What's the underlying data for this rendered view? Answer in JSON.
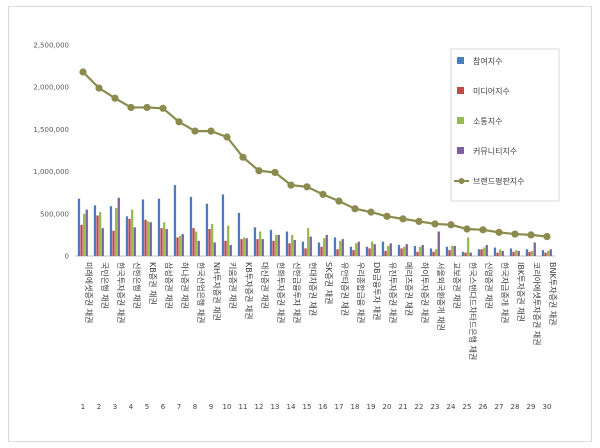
{
  "chart_data": {
    "type": "bar",
    "y_ticks": [
      "0",
      "500,000",
      "1,000,000",
      "1,500,000",
      "2,000,000",
      "2,500,000"
    ],
    "ylim": [
      0,
      2500000
    ],
    "grid": false,
    "legend_position": "right",
    "categories": [
      "미래에셋증권 채권",
      "국민은행 채권",
      "한국투자증권 채권",
      "신한은행 채권",
      "KB증권 채권",
      "삼성증권 채권",
      "하나증권 채권",
      "한국산업은행 채권",
      "NH투자증권 채권",
      "키움증권 채권",
      "KB투자증권 채권",
      "대신증권 채권",
      "한화투자증권 채권",
      "신한금융투자 채권",
      "현대차증권 채권",
      "SK증권 채권",
      "유안타증권 채권",
      "우리종합금융 채권",
      "DB금융투자 채권",
      "유진투자증권 채권",
      "메리츠증권 채권",
      "하이투자증권 채권",
      "서울외국환중개 채권",
      "교보증권 채권",
      "한국스탠다드차타드은행 채권",
      "신영증권 채권",
      "한국자금중개 채권",
      "IBK투자증권 채권",
      "코리아에셋투자증권 채권",
      "BNK투자증권 채권"
    ],
    "index_labels": [
      "1",
      "2",
      "3",
      "4",
      "5",
      "6",
      "7",
      "8",
      "9",
      "10",
      "11",
      "12",
      "13",
      "14",
      "15",
      "16",
      "17",
      "18",
      "19",
      "20",
      "21",
      "22",
      "23",
      "24",
      "25",
      "26",
      "27",
      "28",
      "29",
      "30"
    ],
    "series": [
      {
        "name": "참여지수",
        "kind": "bar",
        "color": "#4a7ebb",
        "values": [
          680000,
          600000,
          590000,
          470000,
          670000,
          680000,
          840000,
          700000,
          620000,
          730000,
          510000,
          340000,
          310000,
          290000,
          170000,
          160000,
          220000,
          110000,
          110000,
          170000,
          130000,
          120000,
          90000,
          110000,
          50000,
          80000,
          100000,
          90000,
          80000,
          70000
        ]
      },
      {
        "name": "미디어지수",
        "kind": "bar",
        "color": "#be4b48",
        "values": [
          370000,
          480000,
          300000,
          440000,
          430000,
          330000,
          220000,
          330000,
          320000,
          180000,
          200000,
          200000,
          180000,
          150000,
          90000,
          110000,
          80000,
          70000,
          90000,
          60000,
          90000,
          50000,
          50000,
          70000,
          40000,
          80000,
          40000,
          50000,
          50000,
          40000
        ]
      },
      {
        "name": "소통지수",
        "kind": "bar",
        "color": "#98b954",
        "values": [
          500000,
          520000,
          570000,
          550000,
          410000,
          400000,
          240000,
          290000,
          380000,
          360000,
          220000,
          290000,
          250000,
          250000,
          330000,
          210000,
          180000,
          150000,
          170000,
          120000,
          110000,
          110000,
          80000,
          120000,
          220000,
          100000,
          80000,
          70000,
          60000,
          60000
        ]
      },
      {
        "name": "커뮤니티지수",
        "kind": "bar",
        "color": "#7d60a0",
        "values": [
          550000,
          330000,
          690000,
          340000,
          400000,
          320000,
          260000,
          180000,
          160000,
          130000,
          210000,
          200000,
          250000,
          190000,
          230000,
          250000,
          200000,
          170000,
          140000,
          150000,
          140000,
          130000,
          290000,
          120000,
          40000,
          130000,
          60000,
          60000,
          160000,
          80000
        ]
      },
      {
        "name": "브랜드평판지수",
        "kind": "line",
        "color": "#8b8a4f",
        "values": [
          2180000,
          1990000,
          1870000,
          1760000,
          1760000,
          1750000,
          1590000,
          1480000,
          1480000,
          1410000,
          1170000,
          1010000,
          990000,
          840000,
          820000,
          730000,
          650000,
          560000,
          520000,
          470000,
          440000,
          410000,
          380000,
          370000,
          320000,
          310000,
          280000,
          260000,
          250000,
          230000
        ]
      }
    ]
  }
}
